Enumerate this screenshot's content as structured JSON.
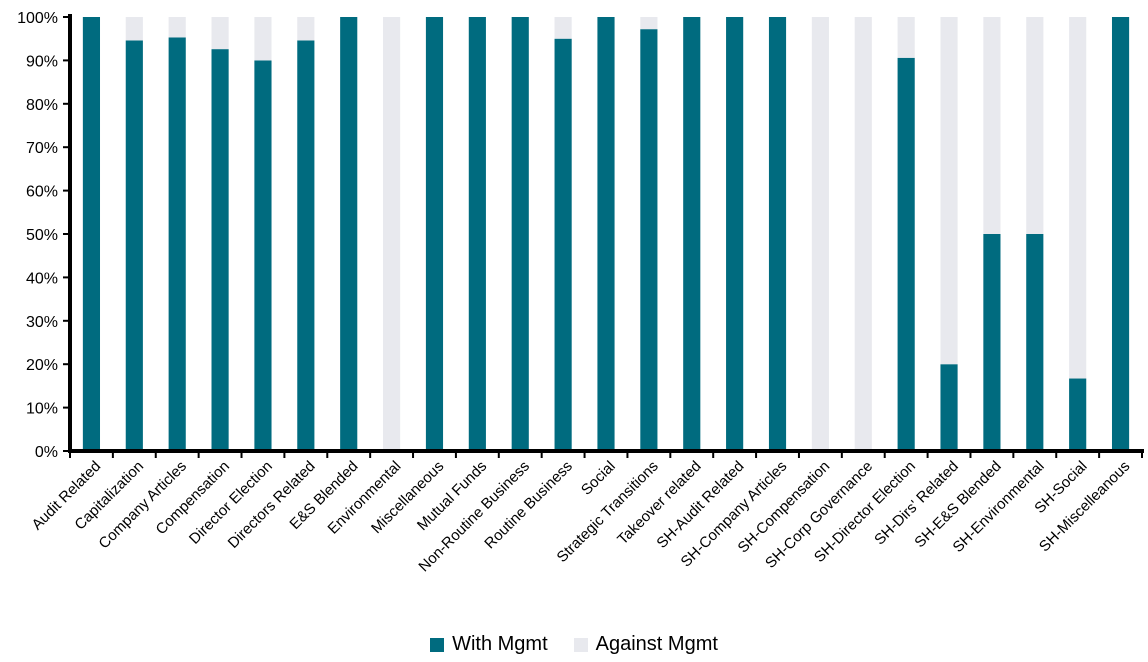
{
  "chart_data": {
    "type": "bar",
    "stacked": true,
    "categories": [
      "Audit Related",
      "Capitalization",
      "Company Articles",
      "Compensation",
      "Director Election",
      "Directors Related",
      "E&S Blended",
      "Environmental",
      "Miscellaneous",
      "Mutual Funds",
      "Non-Routine Business",
      "Routine Business",
      "Social",
      "Strategic Transitions",
      "Takeover related",
      "SH-Audit Related",
      "SH-Company Articles",
      "SH-Compensation",
      "SH-Corp Governance",
      "SH-Director Election",
      "SH-Dirs' Related",
      "SH-E&S Blended",
      "SH-Environmental",
      "SH-Social",
      "SH-Miscelleanous"
    ],
    "series": [
      {
        "name": "With Mgmt",
        "color": "#006B7F",
        "values": [
          100,
          94.6,
          95.3,
          92.6,
          90,
          94.6,
          100,
          0,
          100,
          100,
          100,
          95,
          100,
          97.2,
          100,
          100,
          100,
          0,
          0,
          90.6,
          20,
          50,
          50,
          16.7,
          100
        ]
      },
      {
        "name": "Against Mgmt",
        "color": "#E8E9EE",
        "values": [
          0,
          5.4,
          4.7,
          7.4,
          10,
          5.4,
          0,
          100,
          0,
          0,
          0,
          5,
          0,
          2.8,
          0,
          0,
          0,
          100,
          100,
          9.4,
          80,
          50,
          50,
          83.3,
          0
        ]
      }
    ],
    "yticks": [
      "0%",
      "10%",
      "20%",
      "30%",
      "40%",
      "50%",
      "60%",
      "70%",
      "80%",
      "90%",
      "100%"
    ],
    "ylim": [
      0,
      100
    ],
    "xlabel": "",
    "ylabel": "",
    "legend_position": "bottom",
    "grid": false
  }
}
